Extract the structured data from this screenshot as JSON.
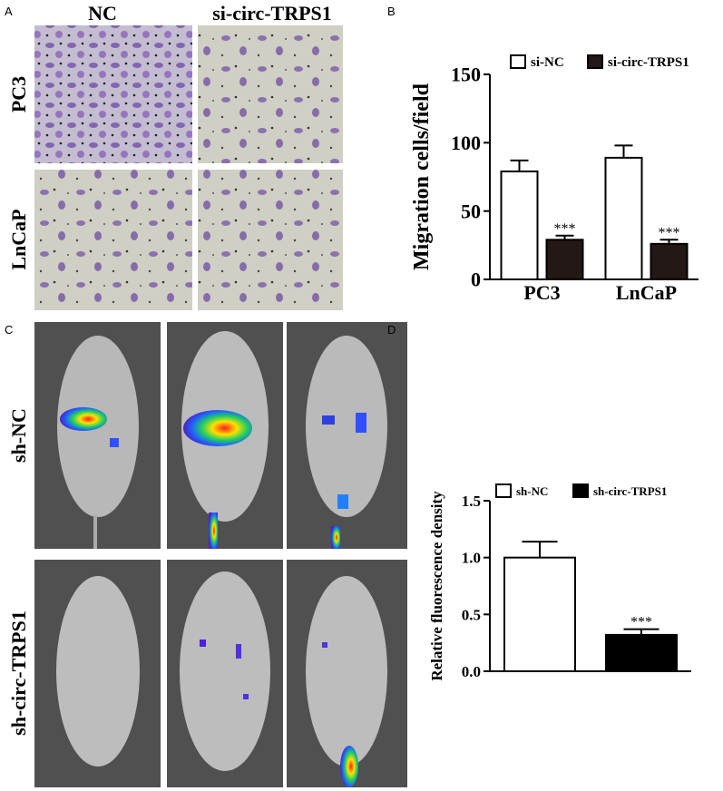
{
  "panels": {
    "A": {
      "label": "A",
      "columns": [
        "NC",
        "si-circ-TRPS1"
      ],
      "rows": [
        "PC3",
        "LnCaP"
      ]
    },
    "B": {
      "label": "B"
    },
    "C": {
      "label": "C",
      "rows": [
        "sh-NC",
        "sh-circ-TRPS1"
      ]
    },
    "D": {
      "label": "D"
    }
  },
  "chart_data": [
    {
      "type": "bar",
      "ylabel": "Migration cells/field",
      "categories": [
        "PC3",
        "LnCaP"
      ],
      "series": [
        {
          "name": "si-NC",
          "color": "#ffffff",
          "values": [
            79,
            89
          ],
          "errors": [
            8,
            9
          ]
        },
        {
          "name": "si-circ-TRPS1",
          "color": "#231815",
          "values": [
            29,
            26
          ],
          "errors": [
            3,
            3
          ],
          "significance": [
            "***",
            "***"
          ]
        }
      ],
      "ylim": [
        0,
        150
      ],
      "yticks": [
        0,
        50,
        100,
        150
      ]
    },
    {
      "type": "bar",
      "ylabel": "Relative fluorescence density",
      "categories": [
        null
      ],
      "series": [
        {
          "name": "sh-NC",
          "color": "#ffffff",
          "values": [
            1.0
          ],
          "errors": [
            0.14
          ]
        },
        {
          "name": "sh-circ-TRPS1",
          "color": "#000000",
          "values": [
            0.32
          ],
          "errors": [
            0.05
          ],
          "significance": [
            "***"
          ]
        }
      ],
      "ylim": [
        0,
        1.5
      ],
      "yticks": [
        {
          "value": 0,
          "label": "0.0"
        },
        {
          "value": 0.5,
          "label": "0.5"
        },
        {
          "value": 1,
          "label": "1.0"
        },
        {
          "value": 1.5,
          "label": "1.5"
        }
      ]
    }
  ]
}
